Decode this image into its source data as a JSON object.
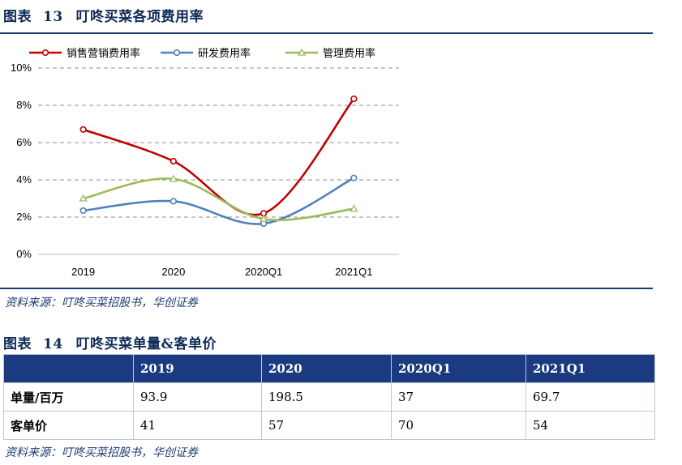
{
  "figure13": {
    "label": "图表",
    "number": "13",
    "title": "叮咚买菜各项费用率",
    "source": "资料来源：叮咚买菜招股书，华创证券"
  },
  "chart_data": {
    "type": "line",
    "categories": [
      "2019",
      "2020",
      "2020Q1",
      "2021Q1"
    ],
    "ylim": [
      0,
      10
    ],
    "yticks": [
      "0%",
      "2%",
      "4%",
      "6%",
      "8%",
      "10%"
    ],
    "grid": true,
    "legend_position": "top",
    "series": [
      {
        "name": "销售营销费用率",
        "color": "#c00000",
        "marker": "circle",
        "values": [
          6.7,
          5.0,
          2.2,
          8.35
        ]
      },
      {
        "name": "研发费用率",
        "color": "#4f81bd",
        "marker": "circle",
        "values": [
          2.35,
          2.85,
          1.65,
          4.1
        ]
      },
      {
        "name": "管理费用率",
        "color": "#9bbb59",
        "marker": "triangle",
        "values": [
          3.0,
          4.05,
          1.9,
          2.45
        ]
      }
    ]
  },
  "figure14": {
    "label": "图表",
    "number": "14",
    "title": "叮咚买菜单量&客单价",
    "columns": [
      "",
      "2019",
      "2020",
      "2020Q1",
      "2021Q1"
    ],
    "rows": [
      {
        "label": "单量/百万",
        "values": [
          "93.9",
          "198.5",
          "37",
          "69.7"
        ]
      },
      {
        "label": "客单价",
        "values": [
          "41",
          "57",
          "70",
          "54"
        ]
      }
    ],
    "source": "资料来源：叮咚买菜招股书，华创证券"
  }
}
